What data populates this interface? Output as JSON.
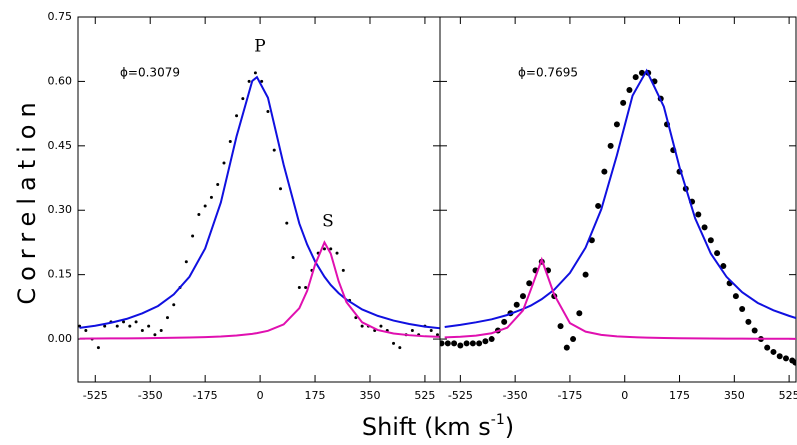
{
  "y_label": "Correlation",
  "x_label": [
    "Shift (km s",
    "-1",
    ")"
  ],
  "chart_data": [
    {
      "type": "scatter",
      "xlim": [
        -580,
        573
      ],
      "ylim": [
        -0.1,
        0.75
      ],
      "xticks": [
        -525,
        -350,
        -175,
        0,
        175,
        350,
        525
      ],
      "yticks": [
        {
          "value": 0,
          "label": "0.00"
        },
        0.15,
        {
          "value": 0.3,
          "label": "0.30"
        },
        0.45,
        {
          "value": 0.6,
          "label": "0.60"
        },
        0.75
      ],
      "annotations": [
        "ϕ=0.3079",
        "P",
        "S"
      ],
      "series": [
        {
          "type": "points",
          "color": "#000000",
          "marker_size": 1.5,
          "x": [
            -575,
            -555,
            -535,
            -515,
            -495,
            -475,
            -455,
            -435,
            -415,
            -395,
            -375,
            -355,
            -335,
            -315,
            -295,
            -275,
            -255,
            -235,
            -215,
            -195,
            -175,
            -155,
            -135,
            -115,
            -95,
            -75,
            -55,
            -35,
            -15,
            5,
            25,
            45,
            65,
            85,
            105,
            125,
            145,
            165,
            185,
            205,
            225,
            245,
            265,
            285,
            305,
            325,
            345,
            365,
            385,
            405,
            425,
            445,
            465,
            485,
            505,
            525,
            545,
            565
          ],
          "values": [
            0.03,
            0.02,
            0.0,
            -0.02,
            0.03,
            0.04,
            0.03,
            0.04,
            0.03,
            0.04,
            0.02,
            0.03,
            0.01,
            0.02,
            0.05,
            0.08,
            0.12,
            0.18,
            0.24,
            0.29,
            0.31,
            0.33,
            0.36,
            0.41,
            0.46,
            0.52,
            0.56,
            0.6,
            0.62,
            0.6,
            0.53,
            0.44,
            0.35,
            0.27,
            0.19,
            0.12,
            0.12,
            0.16,
            0.2,
            0.21,
            0.21,
            0.2,
            0.16,
            0.09,
            0.05,
            0.03,
            0.03,
            0.02,
            0.03,
            0.02,
            -0.01,
            -0.02,
            0.01,
            0.02,
            0.01,
            0.03,
            0.02,
            0.01
          ]
        },
        {
          "type": "line",
          "color": "#1010e0",
          "x": [
            -575,
            -525,
            -475,
            -425,
            -375,
            -325,
            -275,
            -225,
            -175,
            -125,
            -75,
            -25,
            -10,
            25,
            75,
            125,
            150,
            175,
            205,
            225,
            250,
            275,
            325,
            375,
            425,
            475,
            525,
            575
          ],
          "values": [
            0.026,
            0.031,
            0.038,
            0.047,
            0.06,
            0.077,
            0.104,
            0.145,
            0.211,
            0.318,
            0.472,
            0.601,
            0.61,
            0.562,
            0.406,
            0.269,
            0.22,
            0.181,
            0.145,
            0.126,
            0.107,
            0.092,
            0.069,
            0.054,
            0.043,
            0.035,
            0.029,
            0.025
          ]
        },
        {
          "type": "line",
          "color": "#e010b0",
          "x": [
            -575,
            -525,
            -475,
            -425,
            -375,
            -325,
            -275,
            -225,
            -175,
            -125,
            -75,
            -25,
            -10,
            25,
            75,
            125,
            150,
            175,
            205,
            225,
            250,
            275,
            325,
            375,
            425,
            475,
            525,
            575
          ],
          "values": [
            0.0011,
            0.0013,
            0.0015,
            0.0017,
            0.002,
            0.0024,
            0.0029,
            0.0036,
            0.0046,
            0.0061,
            0.0084,
            0.0122,
            0.0138,
            0.0192,
            0.034,
            0.072,
            0.1125,
            0.173,
            0.225,
            0.199,
            0.135,
            0.086,
            0.039,
            0.021,
            0.013,
            0.009,
            0.0064,
            0.0049
          ]
        }
      ]
    },
    {
      "type": "scatter",
      "xlim": [
        -590,
        547
      ],
      "ylim": [
        -0.1,
        0.75
      ],
      "xticks": [
        -525,
        -350,
        -175,
        0,
        175,
        350,
        525
      ],
      "annotations": [
        "ϕ=0.7695"
      ],
      "series": [
        {
          "type": "points",
          "color": "#000000",
          "marker_size": 3,
          "x": [
            -585,
            -565,
            -545,
            -525,
            -505,
            -485,
            -465,
            -445,
            -425,
            -405,
            -385,
            -365,
            -345,
            -325,
            -305,
            -285,
            -265,
            -245,
            -225,
            -205,
            -185,
            -165,
            -145,
            -125,
            -105,
            -85,
            -65,
            -45,
            -25,
            -5,
            15,
            35,
            55,
            75,
            95,
            115,
            135,
            155,
            175,
            195,
            215,
            235,
            255,
            275,
            295,
            315,
            335,
            355,
            375,
            395,
            415,
            435,
            455,
            475,
            495,
            515,
            535,
            545
          ],
          "values": [
            -0.01,
            -0.01,
            -0.01,
            -0.015,
            -0.01,
            -0.01,
            -0.01,
            -0.005,
            0.0,
            0.02,
            0.04,
            0.06,
            0.08,
            0.1,
            0.13,
            0.16,
            0.18,
            0.16,
            0.1,
            0.03,
            -0.02,
            0.0,
            0.06,
            0.15,
            0.23,
            0.31,
            0.39,
            0.45,
            0.5,
            0.55,
            0.58,
            0.61,
            0.62,
            0.62,
            0.6,
            0.56,
            0.5,
            0.44,
            0.39,
            0.35,
            0.32,
            0.29,
            0.26,
            0.23,
            0.2,
            0.17,
            0.13,
            0.1,
            0.07,
            0.04,
            0.02,
            0.0,
            -0.02,
            -0.03,
            -0.04,
            -0.045,
            -0.05,
            -0.055
          ]
        },
        {
          "type": "line",
          "color": "#1010e0",
          "x": [
            -575,
            -525,
            -475,
            -425,
            -375,
            -325,
            -300,
            -265,
            -225,
            -175,
            -125,
            -75,
            -25,
            25,
            70,
            125,
            175,
            225,
            275,
            325,
            375,
            425,
            475,
            525,
            547
          ],
          "values": [
            0.028,
            0.033,
            0.039,
            0.046,
            0.056,
            0.07,
            0.078,
            0.093,
            0.115,
            0.154,
            0.213,
            0.302,
            0.428,
            0.567,
            0.625,
            0.541,
            0.4,
            0.281,
            0.199,
            0.145,
            0.109,
            0.084,
            0.067,
            0.054,
            0.049
          ]
        },
        {
          "type": "line",
          "color": "#e010b0",
          "x": [
            -575,
            -525,
            -475,
            -425,
            -375,
            -325,
            -300,
            -265,
            -225,
            -175,
            -125,
            -75,
            -25,
            25,
            70,
            125,
            175,
            225,
            275,
            325,
            375,
            425,
            475,
            525,
            547
          ],
          "values": [
            0.0038,
            0.0054,
            0.0081,
            0.0136,
            0.0265,
            0.0666,
            0.115,
            0.185,
            0.103,
            0.037,
            0.0173,
            0.0098,
            0.0063,
            0.0044,
            0.0033,
            0.0024,
            0.0019,
            0.0015,
            0.0013,
            0.0011,
            0.0009,
            0.0008,
            0.0007,
            0.0006,
            0.0005
          ]
        }
      ]
    }
  ]
}
